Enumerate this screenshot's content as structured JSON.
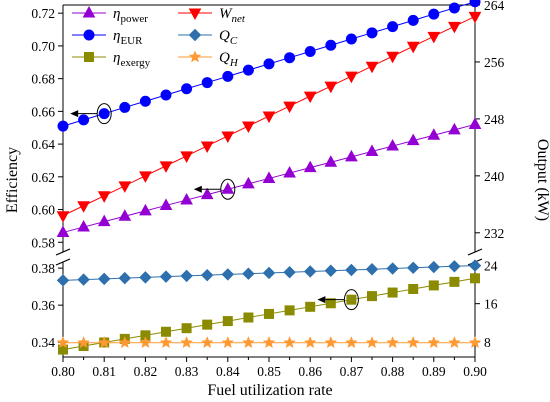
{
  "chart_data": {
    "type": "line",
    "xlabel": "Fuel utilization rate",
    "ylabel_left": "Efficiency",
    "ylabel_right": "Output (kW)",
    "x": [
      0.8,
      0.805,
      0.81,
      0.815,
      0.82,
      0.825,
      0.83,
      0.835,
      0.84,
      0.845,
      0.85,
      0.855,
      0.86,
      0.865,
      0.87,
      0.875,
      0.88,
      0.885,
      0.89,
      0.895,
      0.9
    ],
    "x_ticks": [
      "0.80",
      "0.81",
      "0.82",
      "0.83",
      "0.84",
      "0.85",
      "0.86",
      "0.87",
      "0.88",
      "0.89",
      "0.90"
    ],
    "left_axis_segments": {
      "upper": {
        "range": [
          0.571,
          0.725
        ],
        "ticks": [
          "0.58",
          "0.60",
          "0.62",
          "0.64",
          "0.66",
          "0.68",
          "0.70",
          "0.72"
        ]
      },
      "lower": {
        "range": [
          0.332,
          0.386
        ],
        "ticks": [
          "0.34",
          "0.36",
          "0.38"
        ]
      }
    },
    "right_axis_segments": {
      "upper": {
        "range": [
          228.6,
          264
        ],
        "ticks": [
          "232",
          "240",
          "248",
          "256",
          "264"
        ]
      },
      "lower": {
        "range": [
          4.8,
          25.8
        ],
        "ticks": [
          "8",
          "16",
          "24"
        ]
      }
    },
    "series": [
      {
        "key": "eta_power",
        "name_base": "η",
        "name_sub": "power",
        "axis": "left",
        "color": "#9400d3",
        "marker": "triangle-up",
        "y_start": 0.586,
        "y_end": 0.652
      },
      {
        "key": "w_net",
        "name_base": "W",
        "name_sub": "net",
        "axis": "right",
        "color": "#ff0000",
        "marker": "triangle-down",
        "y_start": 234.4,
        "y_end": 262.4
      },
      {
        "key": "eta_eur",
        "name_base": "η",
        "name_sub": "EUR",
        "axis": "left",
        "color": "#0000ff",
        "marker": "circle",
        "y_start": 0.651,
        "y_end": 0.727
      },
      {
        "key": "q_c",
        "name_base": "Q",
        "name_sub": "C",
        "axis": "right",
        "color": "#2e6fad",
        "marker": "diamond",
        "y_start": 20.9,
        "y_end": 24.0
      },
      {
        "key": "eta_exergy",
        "name_base": "η",
        "name_sub": "exergy",
        "axis": "left",
        "color": "#8b8b00",
        "marker": "square",
        "y_start": 0.336,
        "y_end": 0.3745
      },
      {
        "key": "q_h",
        "name_base": "Q",
        "name_sub": "H",
        "axis": "right",
        "color": "#ff9933",
        "marker": "star",
        "y_start": 7.8,
        "y_end": 7.8
      }
    ],
    "axis_indicators": [
      {
        "series": "eta_eur",
        "x": 0.81,
        "direction": "left"
      },
      {
        "series": "eta_power",
        "x": 0.84,
        "direction": "left"
      },
      {
        "series": "eta_exergy",
        "x": 0.87,
        "direction": "left"
      }
    ],
    "legend_placement": "top-left",
    "grid": false
  }
}
